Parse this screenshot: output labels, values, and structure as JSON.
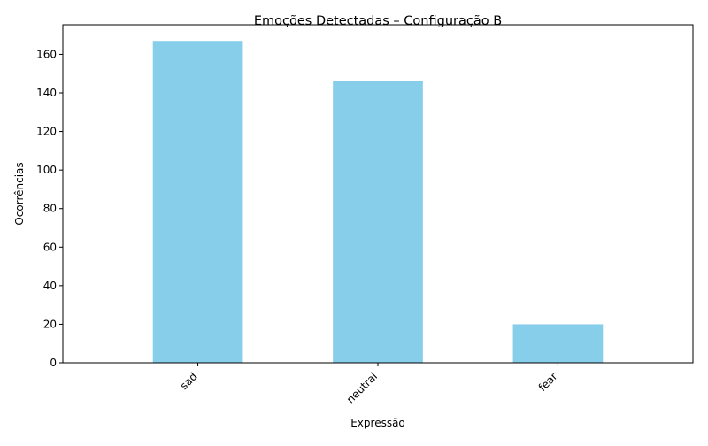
{
  "chart_data": {
    "type": "bar",
    "title": "Emoções Detectadas – Configuração B",
    "xlabel": "Expressão",
    "ylabel": "Ocorrências",
    "categories": [
      "sad",
      "neutral",
      "fear"
    ],
    "values": [
      167,
      146,
      20
    ],
    "ylim": [
      0,
      175.35
    ],
    "yticks": [
      0,
      20,
      40,
      60,
      80,
      100,
      120,
      140,
      160
    ],
    "bar_color": "#87ceeb",
    "grid": false,
    "legend": "none",
    "xtick_rotation": 45
  }
}
